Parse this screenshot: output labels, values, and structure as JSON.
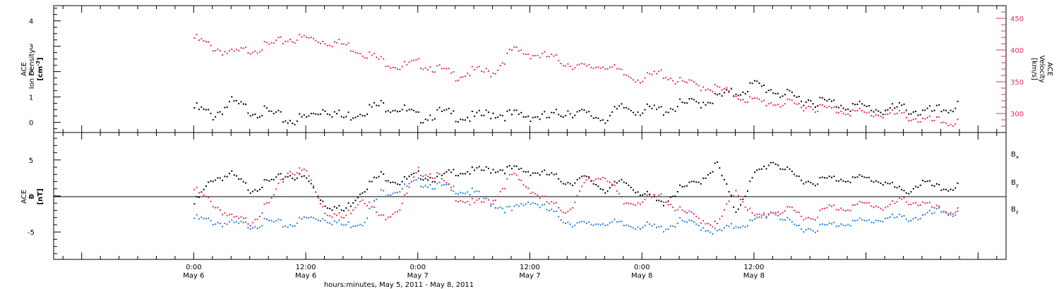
{
  "colors": {
    "density": "#000000",
    "velocity": "#e0305a",
    "bx": "#000000",
    "by": "#1f7fd6",
    "bz": "#e0305a"
  },
  "chart_data": [
    {
      "type": "scatter",
      "panel": "top",
      "ylabel_left": [
        "ACE",
        "Ion Density",
        "[cm^-3]"
      ],
      "ylabel_right": [
        "ACE",
        "Velocity",
        "[km/s]"
      ],
      "ylim_left": [
        -0.4,
        4.6
      ],
      "yticks_left": [
        0,
        1,
        2,
        3,
        4
      ],
      "ylim_right": [
        270,
        470
      ],
      "yticks_right": [
        300,
        350,
        400,
        450
      ],
      "series": [
        {
          "key": "density",
          "axis": "left",
          "x": [
            0,
            2,
            4,
            6,
            8,
            10,
            12,
            14,
            16,
            18,
            20,
            22,
            24,
            26,
            28,
            30,
            32,
            34,
            36,
            38,
            40,
            42,
            44,
            46,
            48,
            50,
            52,
            54,
            56,
            58,
            60,
            62,
            64,
            66,
            68,
            70,
            72,
            74,
            76,
            78,
            80,
            82
          ],
          "y": [
            0.6,
            0.3,
            0.8,
            0.5,
            0.4,
            0.1,
            0.2,
            0.6,
            0.2,
            0.5,
            0.7,
            0.6,
            0.2,
            0.4,
            0.3,
            0.2,
            0.4,
            0.3,
            0.3,
            0.2,
            0.5,
            0.3,
            0.2,
            0.6,
            0.5,
            0.5,
            0.7,
            0.8,
            1.0,
            1.2,
            1.5,
            1.3,
            1.0,
            0.9,
            0.8,
            0.7,
            0.6,
            0.5,
            0.6,
            0.4,
            0.5,
            0.7
          ]
        },
        {
          "key": "velocity",
          "axis": "right",
          "x": [
            0,
            2,
            4,
            6,
            8,
            10,
            12,
            14,
            16,
            18,
            20,
            22,
            24,
            26,
            28,
            30,
            32,
            34,
            36,
            38,
            40,
            42,
            44,
            46,
            48,
            50,
            52,
            54,
            56,
            58,
            60,
            62,
            64,
            66,
            68,
            70,
            72,
            74,
            76,
            78,
            80,
            82
          ],
          "y": [
            420,
            405,
            395,
            402,
            408,
            418,
            420,
            415,
            410,
            398,
            385,
            375,
            380,
            372,
            360,
            368,
            365,
            400,
            395,
            390,
            380,
            372,
            378,
            362,
            355,
            365,
            350,
            345,
            340,
            330,
            320,
            318,
            315,
            312,
            308,
            305,
            300,
            300,
            298,
            290,
            288,
            286
          ]
        }
      ]
    },
    {
      "type": "scatter",
      "panel": "bottom",
      "ylabel": [
        "ACE",
        "B",
        "[nT]"
      ],
      "ylim": [
        -8.8,
        8.8
      ],
      "yticks": [
        -5,
        0,
        5
      ],
      "legend": [
        {
          "key": "bx",
          "label": "B",
          "sub": "x"
        },
        {
          "key": "by",
          "label": "B",
          "sub": "y"
        },
        {
          "key": "bz",
          "label": "B",
          "sub": "z"
        }
      ],
      "series": [
        {
          "key": "bx",
          "x": [
            0,
            2,
            4,
            6,
            8,
            10,
            12,
            14,
            16,
            18,
            20,
            22,
            24,
            26,
            28,
            30,
            32,
            34,
            36,
            38,
            40,
            42,
            44,
            46,
            48,
            50,
            52,
            54,
            56,
            58,
            60,
            62,
            64,
            66,
            68,
            70,
            72,
            74,
            76,
            78,
            80,
            82
          ],
          "y": [
            -1.0,
            2.5,
            3.0,
            1.0,
            2.0,
            3.0,
            2.5,
            -1.0,
            -2.0,
            1.0,
            3.0,
            2.0,
            3.0,
            2.5,
            3.5,
            3.5,
            3.8,
            3.8,
            3.5,
            3.0,
            2.0,
            2.5,
            1.0,
            2.0,
            0.5,
            -1.0,
            1.0,
            2.0,
            4.5,
            -2.0,
            3.0,
            5.0,
            3.0,
            2.0,
            2.5,
            2.5,
            2.5,
            2.0,
            0.5,
            2.0,
            1.0,
            1.5
          ]
        },
        {
          "key": "by",
          "x": [
            0,
            2,
            4,
            6,
            8,
            10,
            12,
            14,
            16,
            18,
            20,
            22,
            24,
            26,
            28,
            30,
            32,
            34,
            36,
            38,
            40,
            42,
            44,
            46,
            48,
            50,
            52,
            54,
            56,
            58,
            60,
            62,
            64,
            66,
            68,
            70,
            72,
            74,
            76,
            78,
            80,
            82
          ],
          "y": [
            -3.0,
            -3.5,
            -3.8,
            -4.0,
            -3.5,
            -4.0,
            -3.0,
            -3.0,
            -4.0,
            -3.5,
            0.5,
            1.0,
            2.0,
            1.5,
            1.0,
            0.5,
            -1.0,
            -2.0,
            -0.5,
            -2.0,
            -3.5,
            -4.0,
            -3.5,
            -4.0,
            -4.0,
            -4.5,
            -3.5,
            -4.0,
            -5.0,
            -4.0,
            -3.5,
            -2.0,
            -4.0,
            -4.5,
            -4.0,
            -3.5,
            -3.5,
            -3.0,
            -3.0,
            -2.8,
            -2.0,
            -2.5
          ]
        },
        {
          "key": "bz",
          "x": [
            0,
            2,
            4,
            6,
            8,
            10,
            12,
            14,
            16,
            18,
            20,
            22,
            24,
            26,
            28,
            30,
            32,
            34,
            36,
            38,
            40,
            42,
            44,
            46,
            48,
            50,
            52,
            54,
            56,
            58,
            60,
            62,
            64,
            66,
            68,
            70,
            72,
            74,
            76,
            78,
            80,
            82
          ],
          "y": [
            1.0,
            -1.0,
            -3.0,
            -3.5,
            -1.0,
            3.5,
            3.5,
            -2.0,
            -3.0,
            0.0,
            -3.0,
            -1.5,
            3.5,
            3.0,
            0.0,
            -1.0,
            -0.5,
            3.0,
            1.0,
            -1.0,
            -2.0,
            2.0,
            3.0,
            -1.0,
            -0.5,
            0.0,
            -2.0,
            -3.0,
            -4.0,
            1.0,
            -3.0,
            -2.0,
            -2.0,
            -3.0,
            -1.5,
            -1.5,
            -1.0,
            -1.5,
            -0.5,
            -1.0,
            -2.0,
            -2.0
          ]
        }
      ]
    }
  ],
  "time_axis": {
    "range_hours": [
      -15,
      87
    ],
    "major_ticks": [
      {
        "h": 0,
        "time": "0:00",
        "date": "May 6"
      },
      {
        "h": 12,
        "time": "12:00",
        "date": "May 6"
      },
      {
        "h": 24,
        "time": "0:00",
        "date": "May 7"
      },
      {
        "h": 36,
        "time": "12:00",
        "date": "May 7"
      },
      {
        "h": 48,
        "time": "0:00",
        "date": "May 8"
      },
      {
        "h": 60,
        "time": "12:00",
        "date": "May 8"
      }
    ],
    "title": "hours:minutes, May  5, 2011 - May  8, 2011"
  }
}
